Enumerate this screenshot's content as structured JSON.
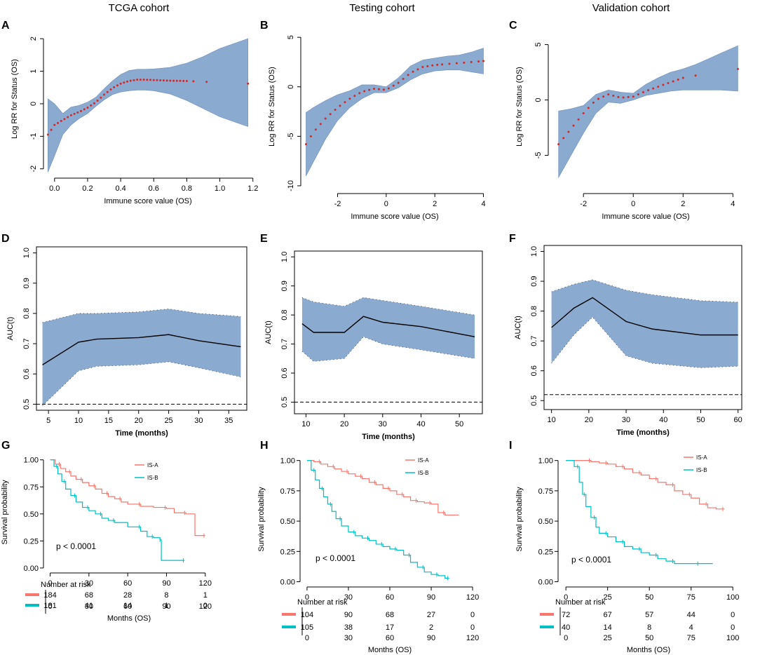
{
  "figure": {
    "column_titles": [
      "TCGA cohort",
      "Testing cohort",
      "Validation cohort"
    ],
    "panel_labels": [
      "A",
      "B",
      "C",
      "D",
      "E",
      "F",
      "G",
      "H",
      "I"
    ]
  },
  "colors": {
    "band": "#8aaad0",
    "band_edge": "#6f8fb8",
    "spline_points": "#d62728",
    "auc_line": "#000000",
    "is_a": "#f8766d",
    "is_b": "#00bfc4"
  },
  "chart_data": [
    {
      "id": "A",
      "type": "line",
      "title": "TCGA cohort",
      "xlabel": "Immune score value (OS)",
      "ylabel": "Log RR for Status (OS)",
      "xlim": [
        -0.05,
        1.18
      ],
      "ylim": [
        -2.2,
        2.5
      ],
      "xticks": [
        0.0,
        0.2,
        0.4,
        0.6,
        0.8,
        1.0,
        1.2
      ],
      "xtick_labels": [
        "0.0",
        "0.2",
        "0.4",
        "0.6",
        "0.8",
        "1.0",
        "1.2"
      ],
      "yticks": [
        -2,
        -1,
        0,
        1,
        2
      ],
      "ytick_labels": [
        "-2",
        "-1",
        "0",
        "1",
        "2"
      ],
      "x": [
        -0.04,
        0.0,
        0.05,
        0.1,
        0.15,
        0.2,
        0.25,
        0.3,
        0.35,
        0.4,
        0.45,
        0.5,
        0.55,
        0.6,
        0.7,
        0.8,
        0.9,
        1.0,
        1.17
      ],
      "fit": [
        -0.95,
        -0.65,
        -0.5,
        -0.35,
        -0.25,
        -0.12,
        0.05,
        0.28,
        0.48,
        0.62,
        0.7,
        0.74,
        0.74,
        0.73,
        0.71,
        0.7,
        0.68,
        0.65,
        0.62
      ],
      "lower": [
        -2.1,
        -1.6,
        -0.95,
        -0.65,
        -0.45,
        -0.3,
        -0.08,
        0.12,
        0.28,
        0.36,
        0.4,
        0.42,
        0.42,
        0.4,
        0.3,
        0.1,
        -0.15,
        -0.4,
        -0.7
      ],
      "upper": [
        0.15,
        0.0,
        -0.3,
        -0.1,
        -0.05,
        0.05,
        0.2,
        0.46,
        0.7,
        0.9,
        1.02,
        1.06,
        1.06,
        1.07,
        1.12,
        1.25,
        1.45,
        1.7,
        2.0
      ],
      "point_x": [
        -0.04,
        -0.02,
        0.0,
        0.02,
        0.04,
        0.06,
        0.08,
        0.1,
        0.12,
        0.14,
        0.16,
        0.18,
        0.2,
        0.22,
        0.24,
        0.26,
        0.28,
        0.3,
        0.32,
        0.34,
        0.36,
        0.38,
        0.4,
        0.42,
        0.44,
        0.46,
        0.48,
        0.5,
        0.52,
        0.54,
        0.56,
        0.58,
        0.6,
        0.62,
        0.64,
        0.66,
        0.68,
        0.7,
        0.72,
        0.74,
        0.76,
        0.78,
        0.8,
        0.84,
        0.92,
        1.17
      ]
    },
    {
      "id": "B",
      "type": "line",
      "title": "Testing cohort",
      "xlabel": "Immune score value (OS)",
      "ylabel": "Log RR for Status (OS)",
      "xlim": [
        -3.4,
        4.1
      ],
      "ylim": [
        -10.5,
        6.5
      ],
      "xticks": [
        -2,
        0,
        2,
        4
      ],
      "xtick_labels": [
        "-2",
        "0",
        "2",
        "4"
      ],
      "yticks": [
        -10,
        -5,
        0,
        5
      ],
      "ytick_labels": [
        "-10",
        "-5",
        "0",
        "5"
      ],
      "x": [
        -3.3,
        -3.0,
        -2.5,
        -2.0,
        -1.5,
        -1.0,
        -0.5,
        0.0,
        0.5,
        1.0,
        1.5,
        2.0,
        2.5,
        3.0,
        3.5,
        4.0
      ],
      "fit": [
        -5.8,
        -4.6,
        -3.2,
        -2.1,
        -1.2,
        -0.5,
        -0.2,
        -0.3,
        0.4,
        1.4,
        2.0,
        2.2,
        2.3,
        2.4,
        2.5,
        2.6
      ],
      "lower": [
        -9.0,
        -7.6,
        -5.3,
        -3.4,
        -2.1,
        -1.2,
        -0.6,
        -0.6,
        -0.1,
        0.7,
        1.3,
        1.6,
        1.7,
        1.7,
        1.5,
        1.3
      ],
      "upper": [
        -2.6,
        -2.1,
        -1.4,
        -0.8,
        -0.4,
        0.2,
        0.2,
        0.0,
        0.9,
        2.1,
        2.7,
        2.9,
        3.1,
        3.2,
        3.5,
        3.9
      ],
      "point_x": [
        -3.3,
        -3.1,
        -2.9,
        -2.7,
        -2.5,
        -2.3,
        -2.1,
        -1.9,
        -1.7,
        -1.5,
        -1.3,
        -1.1,
        -0.9,
        -0.7,
        -0.5,
        -0.3,
        -0.1,
        0.1,
        0.3,
        0.5,
        0.7,
        0.9,
        1.1,
        1.3,
        1.5,
        1.7,
        1.9,
        2.1,
        2.3,
        2.6,
        2.9,
        3.2,
        3.5,
        3.8,
        4.0
      ]
    },
    {
      "id": "C",
      "type": "line",
      "title": "Validation cohort",
      "xlabel": "Immune score value (OS)",
      "ylabel": "Log RR for Status (OS)",
      "xlim": [
        -3.3,
        4.3
      ],
      "ylim": [
        -8.2,
        7.0
      ],
      "xticks": [
        -2,
        0,
        2,
        4
      ],
      "xtick_labels": [
        "-2",
        "0",
        "2",
        "4"
      ],
      "yticks": [
        -5,
        0,
        5
      ],
      "ytick_labels": [
        "-5",
        "0",
        "5"
      ],
      "x": [
        -3.0,
        -2.5,
        -2.0,
        -1.5,
        -1.0,
        -0.5,
        0.0,
        0.5,
        1.0,
        1.5,
        2.0,
        2.5,
        3.0,
        3.5,
        4.2
      ],
      "fit": [
        -4.0,
        -2.6,
        -1.2,
        0.0,
        0.5,
        0.2,
        0.3,
        0.8,
        1.2,
        1.6,
        2.0,
        2.2,
        2.4,
        2.6,
        2.8
      ],
      "lower": [
        -7.0,
        -5.0,
        -3.0,
        -1.2,
        -0.2,
        -0.3,
        0.0,
        0.4,
        0.6,
        0.8,
        0.9,
        0.9,
        0.9,
        0.9,
        0.8
      ],
      "upper": [
        -1.0,
        -0.8,
        -0.5,
        0.5,
        0.9,
        0.7,
        0.6,
        1.4,
        2.0,
        2.5,
        2.8,
        3.2,
        3.7,
        4.2,
        4.9
      ],
      "point_x": [
        -3.0,
        -2.8,
        -2.6,
        -2.4,
        -2.2,
        -2.0,
        -1.8,
        -1.6,
        -1.4,
        -1.2,
        -1.0,
        -0.8,
        -0.6,
        -0.4,
        -0.2,
        0.0,
        0.2,
        0.4,
        0.6,
        0.8,
        1.0,
        1.2,
        1.4,
        1.6,
        1.8,
        2.0,
        2.5,
        4.2
      ]
    },
    {
      "id": "D",
      "type": "line",
      "xlabel": "Time (months)",
      "ylabel": "AUC(t)",
      "xlim": [
        3,
        38
      ],
      "ylim": [
        0.48,
        1.02
      ],
      "xticks": [
        5,
        10,
        15,
        20,
        25,
        30,
        35
      ],
      "xtick_labels": [
        "5",
        "10",
        "15",
        "20",
        "25",
        "30",
        "35"
      ],
      "yticks": [
        0.5,
        0.6,
        0.7,
        0.8,
        0.9,
        1.0
      ],
      "ytick_labels": [
        "0.5",
        "0.6",
        "0.7",
        "0.8",
        "0.9",
        "1.0"
      ],
      "reference": 0.5,
      "x": [
        4,
        10,
        13,
        20,
        25,
        30,
        37
      ],
      "auc": [
        0.63,
        0.705,
        0.715,
        0.72,
        0.73,
        0.71,
        0.69
      ],
      "lower": [
        0.495,
        0.61,
        0.625,
        0.63,
        0.64,
        0.62,
        0.59
      ],
      "upper": [
        0.77,
        0.8,
        0.8,
        0.805,
        0.815,
        0.8,
        0.79
      ]
    },
    {
      "id": "E",
      "type": "line",
      "xlabel": "Time (months)",
      "ylabel": "AUC(t)",
      "xlim": [
        7,
        56
      ],
      "ylim": [
        0.46,
        1.02
      ],
      "xticks": [
        10,
        20,
        30,
        40,
        50
      ],
      "xtick_labels": [
        "10",
        "20",
        "30",
        "40",
        "50"
      ],
      "yticks": [
        0.5,
        0.6,
        0.7,
        0.8,
        0.9,
        1.0
      ],
      "ytick_labels": [
        "0.5",
        "0.6",
        "0.7",
        "0.8",
        "0.9",
        "1.0"
      ],
      "reference": 0.5,
      "x": [
        9,
        12,
        20,
        25,
        30,
        40,
        54
      ],
      "auc": [
        0.77,
        0.74,
        0.74,
        0.795,
        0.775,
        0.76,
        0.725
      ],
      "lower": [
        0.675,
        0.64,
        0.65,
        0.725,
        0.7,
        0.68,
        0.65
      ],
      "upper": [
        0.86,
        0.845,
        0.83,
        0.86,
        0.85,
        0.83,
        0.8
      ]
    },
    {
      "id": "F",
      "type": "line",
      "xlabel": "Time (months)",
      "ylabel": "AUC(t)",
      "xlim": [
        8,
        61
      ],
      "ylim": [
        0.47,
        1.02
      ],
      "xticks": [
        10,
        20,
        30,
        40,
        50,
        60
      ],
      "xtick_labels": [
        "10",
        "20",
        "30",
        "40",
        "50",
        "60"
      ],
      "yticks": [
        0.5,
        0.6,
        0.7,
        0.8,
        0.9,
        1.0
      ],
      "ytick_labels": [
        "0.5",
        "0.6",
        "0.7",
        "0.8",
        "0.9",
        "1.0"
      ],
      "reference": 0.52,
      "x": [
        10,
        16,
        21,
        30,
        37,
        50,
        60
      ],
      "auc": [
        0.745,
        0.81,
        0.845,
        0.765,
        0.74,
        0.72,
        0.72
      ],
      "lower": [
        0.625,
        0.72,
        0.78,
        0.65,
        0.625,
        0.61,
        0.615
      ],
      "upper": [
        0.865,
        0.89,
        0.905,
        0.87,
        0.855,
        0.835,
        0.83
      ]
    },
    {
      "id": "G",
      "type": "line",
      "xlabel": "Months (OS)",
      "ylabel": "Survival probability",
      "xlim": [
        -3,
        125
      ],
      "ylim": [
        -0.02,
        1.05
      ],
      "xticks": [
        0,
        30,
        60,
        90,
        120
      ],
      "xtick_labels": [
        "0",
        "30",
        "60",
        "90",
        "120"
      ],
      "yticks": [
        0,
        0.25,
        0.5,
        0.75,
        1.0
      ],
      "ytick_labels": [
        "0.00",
        "0.25",
        "0.50",
        "0.75",
        "1.00"
      ],
      "pvalue": "p < 0.0001",
      "legend": [
        "IS-A",
        "IS-B"
      ],
      "series": [
        {
          "name": "IS-A",
          "x": [
            0,
            4,
            8,
            12,
            16,
            20,
            25,
            30,
            35,
            40,
            45,
            50,
            55,
            60,
            70,
            80,
            90,
            96,
            105,
            112,
            120
          ],
          "y": [
            1.0,
            0.96,
            0.92,
            0.89,
            0.85,
            0.82,
            0.79,
            0.76,
            0.73,
            0.69,
            0.66,
            0.64,
            0.61,
            0.59,
            0.57,
            0.56,
            0.55,
            0.51,
            0.5,
            0.3,
            0.3
          ]
        },
        {
          "name": "IS-B",
          "x": [
            0,
            3,
            6,
            9,
            12,
            16,
            20,
            25,
            30,
            35,
            40,
            45,
            50,
            60,
            70,
            75,
            80,
            85,
            86,
            95,
            104
          ],
          "y": [
            1.0,
            0.94,
            0.87,
            0.8,
            0.73,
            0.67,
            0.61,
            0.56,
            0.53,
            0.5,
            0.46,
            0.44,
            0.42,
            0.38,
            0.34,
            0.29,
            0.28,
            0.26,
            0.07,
            0.07,
            0.07
          ]
        }
      ],
      "risk_table": {
        "title": "Number at risk",
        "xlabel": "Months (OS)",
        "times": [
          0,
          30,
          60,
          90,
          120
        ],
        "rows": [
          {
            "name": "IS-A",
            "counts": [
              "184",
              "68",
              "28",
              "8",
              "1"
            ]
          },
          {
            "name": "IS-B",
            "counts": [
              "181",
              "41",
              "14",
              "1",
              "0"
            ]
          }
        ]
      }
    },
    {
      "id": "H",
      "type": "line",
      "xlabel": "Months (OS)",
      "ylabel": "Survival probability",
      "xlim": [
        -3,
        123
      ],
      "ylim": [
        -0.02,
        1.05
      ],
      "xticks": [
        0,
        30,
        60,
        90,
        120
      ],
      "xtick_labels": [
        "0",
        "30",
        "60",
        "90",
        "120"
      ],
      "yticks": [
        0,
        0.25,
        0.5,
        0.75,
        1.0
      ],
      "ytick_labels": [
        "0.00",
        "0.25",
        "0.50",
        "0.75",
        "1.00"
      ],
      "pvalue": "p < 0.0001",
      "legend": [
        "IS-A",
        "IS-B"
      ],
      "series": [
        {
          "name": "IS-A",
          "x": [
            0,
            5,
            10,
            15,
            20,
            25,
            30,
            35,
            40,
            45,
            50,
            55,
            60,
            65,
            70,
            75,
            80,
            85,
            90,
            95,
            100,
            110
          ],
          "y": [
            1.0,
            0.99,
            0.97,
            0.95,
            0.93,
            0.91,
            0.89,
            0.87,
            0.85,
            0.82,
            0.8,
            0.77,
            0.75,
            0.72,
            0.7,
            0.67,
            0.66,
            0.65,
            0.64,
            0.57,
            0.55,
            0.55
          ]
        },
        {
          "name": "IS-B",
          "x": [
            0,
            3,
            6,
            9,
            12,
            15,
            18,
            21,
            25,
            30,
            35,
            40,
            45,
            50,
            55,
            60,
            65,
            70,
            75,
            80,
            85,
            90,
            95,
            100,
            103
          ],
          "y": [
            1.0,
            0.92,
            0.84,
            0.77,
            0.7,
            0.64,
            0.58,
            0.52,
            0.46,
            0.41,
            0.38,
            0.36,
            0.34,
            0.31,
            0.29,
            0.27,
            0.26,
            0.22,
            0.16,
            0.12,
            0.08,
            0.06,
            0.05,
            0.03,
            0.03
          ]
        }
      ],
      "risk_table": {
        "title": "Number at risk",
        "xlabel": "Months (OS)",
        "times": [
          0,
          30,
          60,
          90,
          120
        ],
        "rows": [
          {
            "name": "IS-A",
            "counts": [
              "104",
              "90",
              "68",
              "27",
              "0"
            ]
          },
          {
            "name": "IS-B",
            "counts": [
              "105",
              "38",
              "17",
              "2",
              "0"
            ]
          }
        ]
      }
    },
    {
      "id": "I",
      "type": "line",
      "xlabel": "Months (OS)",
      "ylabel": "Survival probability",
      "xlim": [
        -3,
        102
      ],
      "ylim": [
        -0.02,
        1.05
      ],
      "xticks": [
        0,
        25,
        50,
        75,
        100
      ],
      "xtick_labels": [
        "0",
        "25",
        "50",
        "75",
        "100"
      ],
      "yticks": [
        0,
        0.25,
        0.5,
        0.75,
        1.0
      ],
      "ytick_labels": [
        "0.00",
        "0.25",
        "0.50",
        "0.75",
        "1.00"
      ],
      "pvalue": "p < 0.0001",
      "legend": [
        "IS-A",
        "IS-B"
      ],
      "series": [
        {
          "name": "IS-A",
          "x": [
            0,
            10,
            15,
            20,
            25,
            30,
            35,
            40,
            45,
            50,
            55,
            60,
            65,
            70,
            75,
            80,
            85,
            90,
            95
          ],
          "y": [
            1.0,
            1.0,
            0.99,
            0.98,
            0.97,
            0.95,
            0.93,
            0.9,
            0.88,
            0.85,
            0.82,
            0.8,
            0.75,
            0.72,
            0.69,
            0.64,
            0.61,
            0.6,
            0.6
          ]
        },
        {
          "name": "IS-B",
          "x": [
            0,
            5,
            8,
            10,
            12,
            15,
            18,
            20,
            25,
            30,
            35,
            40,
            45,
            50,
            55,
            60,
            65,
            70,
            80,
            88
          ],
          "y": [
            1.0,
            0.95,
            0.82,
            0.72,
            0.62,
            0.53,
            0.45,
            0.4,
            0.37,
            0.33,
            0.29,
            0.27,
            0.24,
            0.22,
            0.19,
            0.17,
            0.15,
            0.15,
            0.15,
            0.15
          ]
        }
      ],
      "risk_table": {
        "title": "Number at risk",
        "xlabel": "Months (OS)",
        "times": [
          0,
          25,
          50,
          75,
          100
        ],
        "rows": [
          {
            "name": "IS-A",
            "counts": [
              "72",
              "67",
              "57",
              "44",
              "0"
            ]
          },
          {
            "name": "IS-B",
            "counts": [
              "40",
              "14",
              "8",
              "4",
              "0"
            ]
          }
        ]
      }
    }
  ]
}
